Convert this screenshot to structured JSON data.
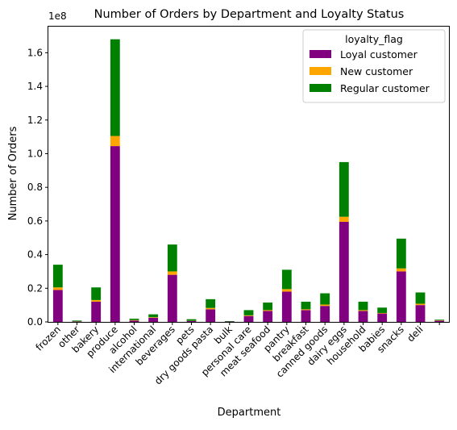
{
  "chart_data": {
    "type": "bar",
    "stacked": true,
    "title": "Number of Orders by Department and Loyalty Status",
    "xlabel": "Department",
    "ylabel": "Number of Orders",
    "y_multiplier": "1e8",
    "ylim": [
      0,
      1.76
    ],
    "yticks": [
      "0.0",
      "0.2",
      "0.4",
      "0.6",
      "0.8",
      "1.0",
      "1.2",
      "1.4",
      "1.6"
    ],
    "grid": false,
    "legend": {
      "title": "loyalty_flag",
      "position": "upper-right"
    },
    "categories": [
      "frozen",
      "other",
      "bakery",
      "produce",
      "alcohol",
      "international",
      "beverages",
      "pets",
      "dry goods pasta",
      "bulk",
      "personal care",
      "meat seafood",
      "pantry",
      "breakfast",
      "canned goods",
      "dairy eggs",
      "household",
      "babies",
      "snacks",
      "deli",
      ""
    ],
    "series": [
      {
        "name": "Loyal customer",
        "color": "#800080",
        "values": [
          0.19,
          0.002,
          0.12,
          1.045,
          0.008,
          0.025,
          0.28,
          0.005,
          0.075,
          0.002,
          0.035,
          0.065,
          0.18,
          0.07,
          0.095,
          0.595,
          0.065,
          0.05,
          0.3,
          0.1,
          0.007
        ]
      },
      {
        "name": "New customer",
        "color": "#FFA500",
        "values": [
          0.015,
          0.001,
          0.01,
          0.06,
          0.003,
          0.003,
          0.02,
          0.001,
          0.008,
          0.0,
          0.004,
          0.005,
          0.015,
          0.005,
          0.008,
          0.03,
          0.005,
          0.003,
          0.018,
          0.008,
          0.002
        ]
      },
      {
        "name": "Regular customer",
        "color": "#008000",
        "values": [
          0.135,
          0.005,
          0.075,
          0.575,
          0.008,
          0.017,
          0.16,
          0.01,
          0.052,
          0.003,
          0.031,
          0.045,
          0.115,
          0.045,
          0.067,
          0.325,
          0.05,
          0.032,
          0.177,
          0.067,
          0.004
        ]
      }
    ]
  }
}
